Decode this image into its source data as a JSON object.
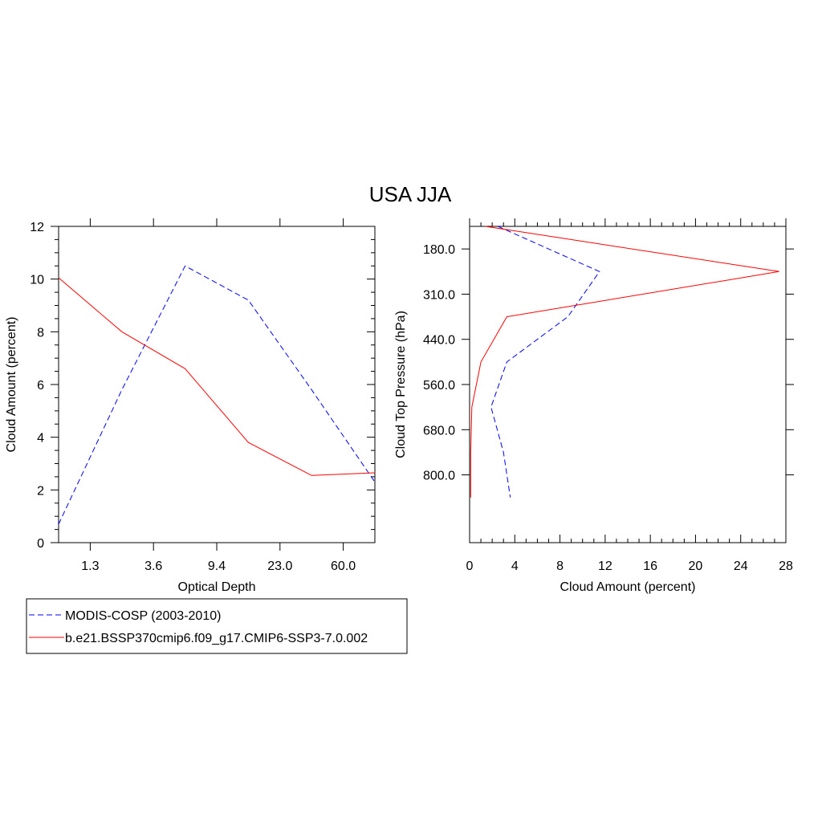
{
  "title": "USA JJA",
  "legend": {
    "placement": "bottom-left",
    "entries": [
      {
        "label": "MODIS-COSP (2003-2010)",
        "color": "#0000ff",
        "style": "dashed"
      },
      {
        "label": "b.e21.BSSP370cmip6.f09_g17.CMIP6-SSP3-7.0.002",
        "color": "#ff0000",
        "style": "solid"
      }
    ]
  },
  "chart_data": [
    {
      "type": "line",
      "xlabel": "Optical Depth",
      "ylabel": "Cloud Amount (percent)",
      "xticks": [
        "1.3",
        "3.6",
        "9.4",
        "23.0",
        "60.0"
      ],
      "ylim": [
        0,
        12
      ],
      "yticks": [
        "0",
        "2",
        "4",
        "6",
        "8",
        "10",
        "12"
      ],
      "grid": false,
      "series": [
        {
          "name": "MODIS-COSP (2003-2010)",
          "color": "#0000ff",
          "dashed": true,
          "x": [
            0,
            1,
            2,
            3,
            4,
            5
          ],
          "values": [
            0.7,
            5.8,
            10.5,
            9.2,
            5.8,
            2.3
          ]
        },
        {
          "name": "b.e21.BSSP370cmip6.f09_g17.CMIP6-SSP3-7.0.002",
          "color": "#ff0000",
          "dashed": false,
          "x": [
            0,
            1,
            2,
            3,
            4,
            5
          ],
          "values": [
            10.05,
            8.0,
            6.6,
            3.8,
            2.55,
            2.65
          ]
        }
      ]
    },
    {
      "type": "line",
      "xlabel": "Cloud Amount (percent)",
      "ylabel": "Cloud Top Pressure (hPa)",
      "xlim": [
        0,
        28
      ],
      "xticks": [
        "0",
        "4",
        "8",
        "12",
        "16",
        "20",
        "24",
        "28"
      ],
      "yticks": [
        "180.0",
        "310.0",
        "440.0",
        "560.0",
        "680.0",
        "800.0"
      ],
      "grid": false,
      "series": [
        {
          "name": "MODIS-COSP (2003-2010)",
          "color": "#0000ff",
          "dashed": true,
          "pressure": [
            90,
            245,
            375,
            500,
            620,
            740,
            860
          ],
          "values": [
            2.5,
            11.5,
            8.7,
            3.3,
            1.9,
            3.0,
            3.6
          ]
        },
        {
          "name": "b.e21.BSSP370cmip6.f09_g17.CMIP6-SSP3-7.0.002",
          "color": "#ff0000",
          "dashed": false,
          "pressure": [
            90,
            245,
            375,
            500,
            620,
            740,
            860
          ],
          "values": [
            1.4,
            27.4,
            3.3,
            1.0,
            0.2,
            0.1,
            0.1
          ]
        }
      ]
    }
  ]
}
